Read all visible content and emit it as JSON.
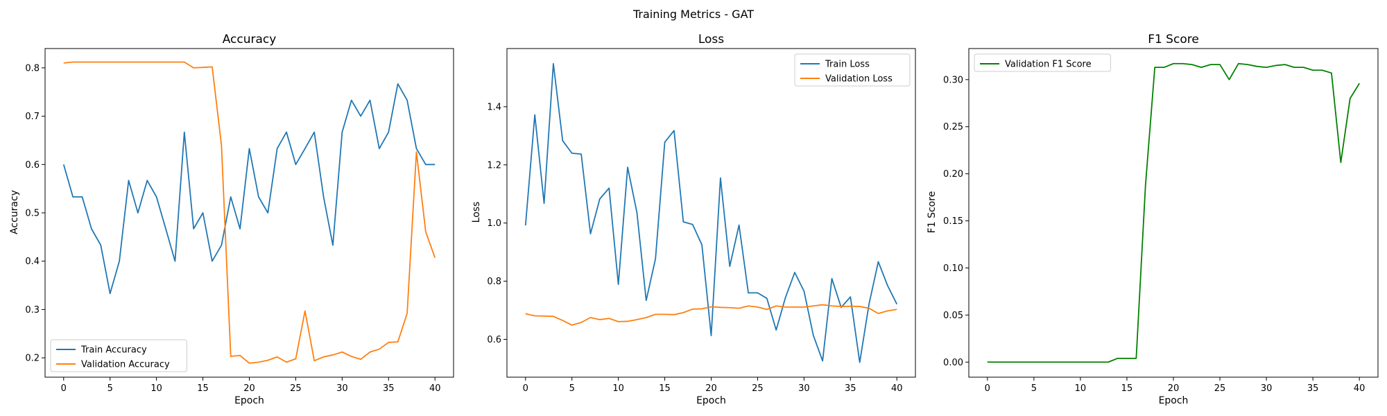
{
  "figure": {
    "title": "Training Metrics - GAT"
  },
  "colors": {
    "train": "#1f77b4",
    "validation": "#ff7f0e",
    "f1": "#008000",
    "axis": "#000000"
  },
  "chart_data": [
    {
      "type": "line",
      "title": "Accuracy",
      "xlabel": "Epoch",
      "ylabel": "Accuracy",
      "xlim": [
        -2,
        42
      ],
      "ylim": [
        0.16,
        0.84
      ],
      "xticks": [
        0,
        5,
        10,
        15,
        20,
        25,
        30,
        35,
        40
      ],
      "yticks": [
        0.2,
        0.3,
        0.4,
        0.5,
        0.6,
        0.7,
        0.8
      ],
      "ytick_labels": [
        "0.2",
        "0.3",
        "0.4",
        "0.5",
        "0.6",
        "0.7",
        "0.8"
      ],
      "legend_position": "lower-left",
      "x": [
        0,
        1,
        2,
        3,
        4,
        5,
        6,
        7,
        8,
        9,
        10,
        11,
        12,
        13,
        14,
        15,
        16,
        17,
        18,
        19,
        20,
        21,
        22,
        23,
        24,
        25,
        26,
        27,
        28,
        29,
        30,
        31,
        32,
        33,
        34,
        35,
        36,
        37,
        38,
        39,
        40
      ],
      "series": [
        {
          "name": "Train Accuracy",
          "color": "#1f77b4",
          "values": [
            0.6,
            0.533,
            0.533,
            0.467,
            0.433,
            0.333,
            0.4,
            0.567,
            0.5,
            0.567,
            0.533,
            0.467,
            0.4,
            0.667,
            0.467,
            0.5,
            0.4,
            0.433,
            0.533,
            0.467,
            0.633,
            0.533,
            0.5,
            0.633,
            0.667,
            0.6,
            0.633,
            0.667,
            0.533,
            0.433,
            0.667,
            0.733,
            0.7,
            0.733,
            0.633,
            0.667,
            0.767,
            0.733,
            0.633,
            0.6,
            0.6
          ]
        },
        {
          "name": "Validation Accuracy",
          "color": "#ff7f0e",
          "values": [
            0.81,
            0.812,
            0.812,
            0.812,
            0.812,
            0.812,
            0.812,
            0.812,
            0.812,
            0.812,
            0.812,
            0.812,
            0.812,
            0.812,
            0.8,
            0.801,
            0.802,
            0.64,
            0.203,
            0.205,
            0.189,
            0.191,
            0.195,
            0.202,
            0.191,
            0.198,
            0.297,
            0.194,
            0.202,
            0.206,
            0.212,
            0.203,
            0.197,
            0.212,
            0.218,
            0.232,
            0.233,
            0.292,
            0.626,
            0.461,
            0.407
          ]
        }
      ]
    },
    {
      "type": "line",
      "title": "Loss",
      "xlabel": "Epoch",
      "ylabel": "Loss",
      "xlim": [
        -2,
        42
      ],
      "ylim": [
        0.47,
        1.6
      ],
      "xticks": [
        0,
        5,
        10,
        15,
        20,
        25,
        30,
        35,
        40
      ],
      "yticks": [
        0.6,
        0.8,
        1.0,
        1.2,
        1.4
      ],
      "ytick_labels": [
        "0.6",
        "0.8",
        "1.0",
        "1.2",
        "1.4"
      ],
      "legend_position": "top-right",
      "x": [
        0,
        1,
        2,
        3,
        4,
        5,
        6,
        7,
        8,
        9,
        10,
        11,
        12,
        13,
        14,
        15,
        16,
        17,
        18,
        19,
        20,
        21,
        22,
        23,
        24,
        25,
        26,
        27,
        28,
        29,
        30,
        31,
        32,
        33,
        34,
        35,
        36,
        37,
        38,
        39,
        40
      ],
      "series": [
        {
          "name": "Train Loss",
          "color": "#1f77b4",
          "values": [
            0.992,
            1.372,
            1.068,
            1.548,
            1.283,
            1.24,
            1.237,
            0.963,
            1.083,
            1.12,
            0.789,
            1.192,
            1.036,
            0.734,
            0.877,
            1.278,
            1.318,
            1.004,
            0.995,
            0.925,
            0.613,
            1.155,
            0.851,
            0.993,
            0.76,
            0.76,
            0.741,
            0.632,
            0.744,
            0.83,
            0.766,
            0.614,
            0.526,
            0.809,
            0.71,
            0.746,
            0.521,
            0.721,
            0.867,
            0.785,
            0.721
          ]
        },
        {
          "name": "Validation Loss",
          "color": "#ff7f0e",
          "values": [
            0.688,
            0.681,
            0.68,
            0.679,
            0.665,
            0.649,
            0.658,
            0.675,
            0.668,
            0.672,
            0.661,
            0.662,
            0.668,
            0.675,
            0.686,
            0.686,
            0.685,
            0.692,
            0.704,
            0.705,
            0.712,
            0.71,
            0.709,
            0.707,
            0.715,
            0.711,
            0.703,
            0.715,
            0.711,
            0.711,
            0.711,
            0.715,
            0.719,
            0.715,
            0.713,
            0.714,
            0.713,
            0.707,
            0.689,
            0.698,
            0.703
          ]
        }
      ]
    },
    {
      "type": "line",
      "title": "F1 Score",
      "xlabel": "Epoch",
      "ylabel": "F1 Score",
      "xlim": [
        -2,
        42
      ],
      "ylim": [
        -0.016,
        0.333
      ],
      "xticks": [
        0,
        5,
        10,
        15,
        20,
        25,
        30,
        35,
        40
      ],
      "yticks": [
        0.0,
        0.05,
        0.1,
        0.15,
        0.2,
        0.25,
        0.3
      ],
      "ytick_labels": [
        "0.00",
        "0.05",
        "0.10",
        "0.15",
        "0.20",
        "0.25",
        "0.30"
      ],
      "legend_position": "top-left",
      "x": [
        0,
        1,
        2,
        3,
        4,
        5,
        6,
        7,
        8,
        9,
        10,
        11,
        12,
        13,
        14,
        15,
        16,
        17,
        18,
        19,
        20,
        21,
        22,
        23,
        24,
        25,
        26,
        27,
        28,
        29,
        30,
        31,
        32,
        33,
        34,
        35,
        36,
        37,
        38,
        39,
        40
      ],
      "series": [
        {
          "name": "Validation F1 Score",
          "color": "#008000",
          "values": [
            0,
            0,
            0,
            0,
            0,
            0,
            0,
            0,
            0,
            0,
            0,
            0,
            0,
            0,
            0.004,
            0.004,
            0.004,
            0.188,
            0.313,
            0.313,
            0.317,
            0.317,
            0.316,
            0.313,
            0.316,
            0.316,
            0.3,
            0.317,
            0.316,
            0.314,
            0.313,
            0.315,
            0.316,
            0.313,
            0.313,
            0.31,
            0.31,
            0.307,
            0.212,
            0.28,
            0.296
          ]
        }
      ]
    }
  ]
}
